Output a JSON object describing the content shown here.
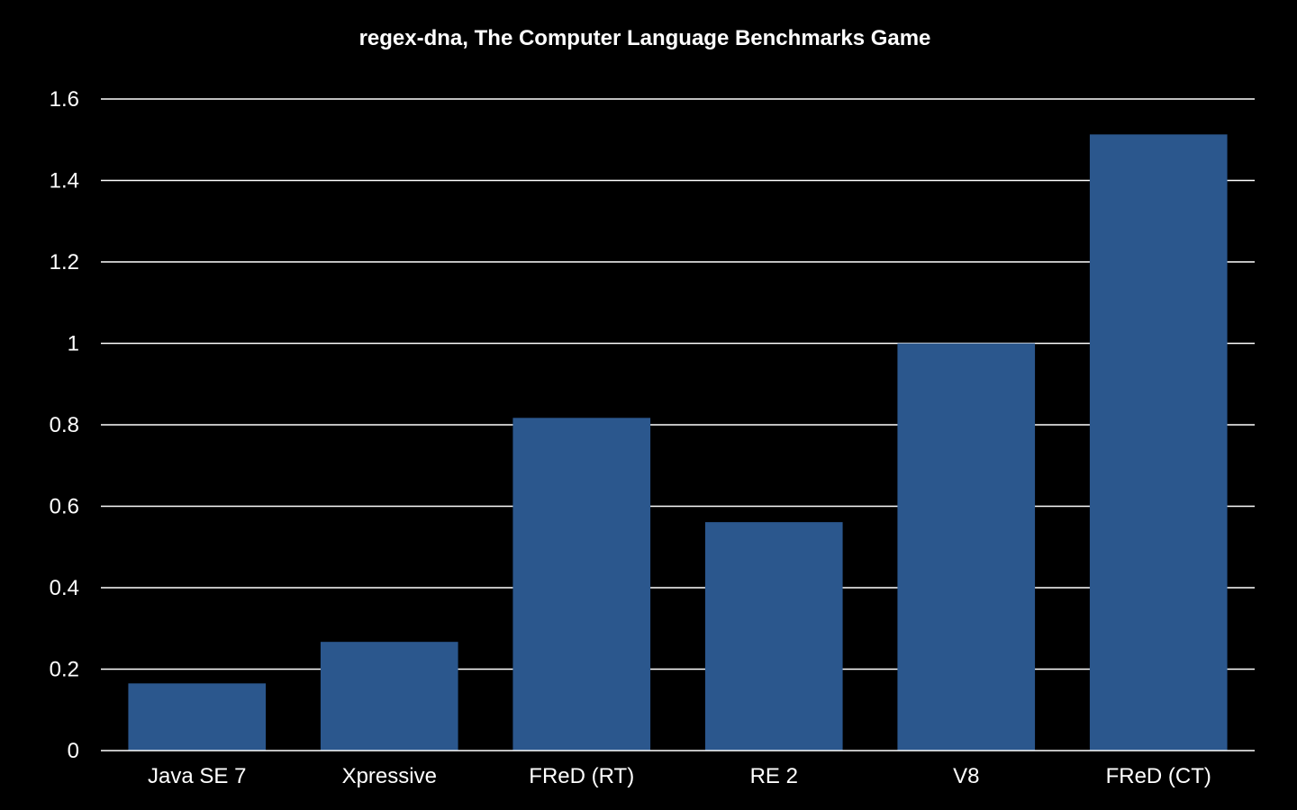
{
  "chart_data": {
    "type": "bar",
    "title": "regex-dna, The Computer Language Benchmarks Game",
    "xlabel": "",
    "ylabel": "",
    "categories": [
      "Java SE 7",
      "Xpressive",
      "FReD (RT)",
      "RE 2",
      "V8",
      "FReD (CT)"
    ],
    "values": [
      0.165,
      0.267,
      0.817,
      0.561,
      1.0,
      1.513
    ],
    "ylim": [
      0,
      1.6
    ],
    "yticks": [
      0,
      0.2,
      0.4,
      0.6,
      0.8,
      1,
      1.2,
      1.4,
      1.6
    ],
    "ytick_labels": [
      "0",
      "0.2",
      "0.4",
      "0.6",
      "0.8",
      "1",
      "1.2",
      "1.4",
      "1.6"
    ],
    "grid": true,
    "legend": "none",
    "colors": {
      "background": "#000000",
      "bar": "#2b578d",
      "grid": "#ffffff",
      "text": "#ffffff"
    }
  }
}
